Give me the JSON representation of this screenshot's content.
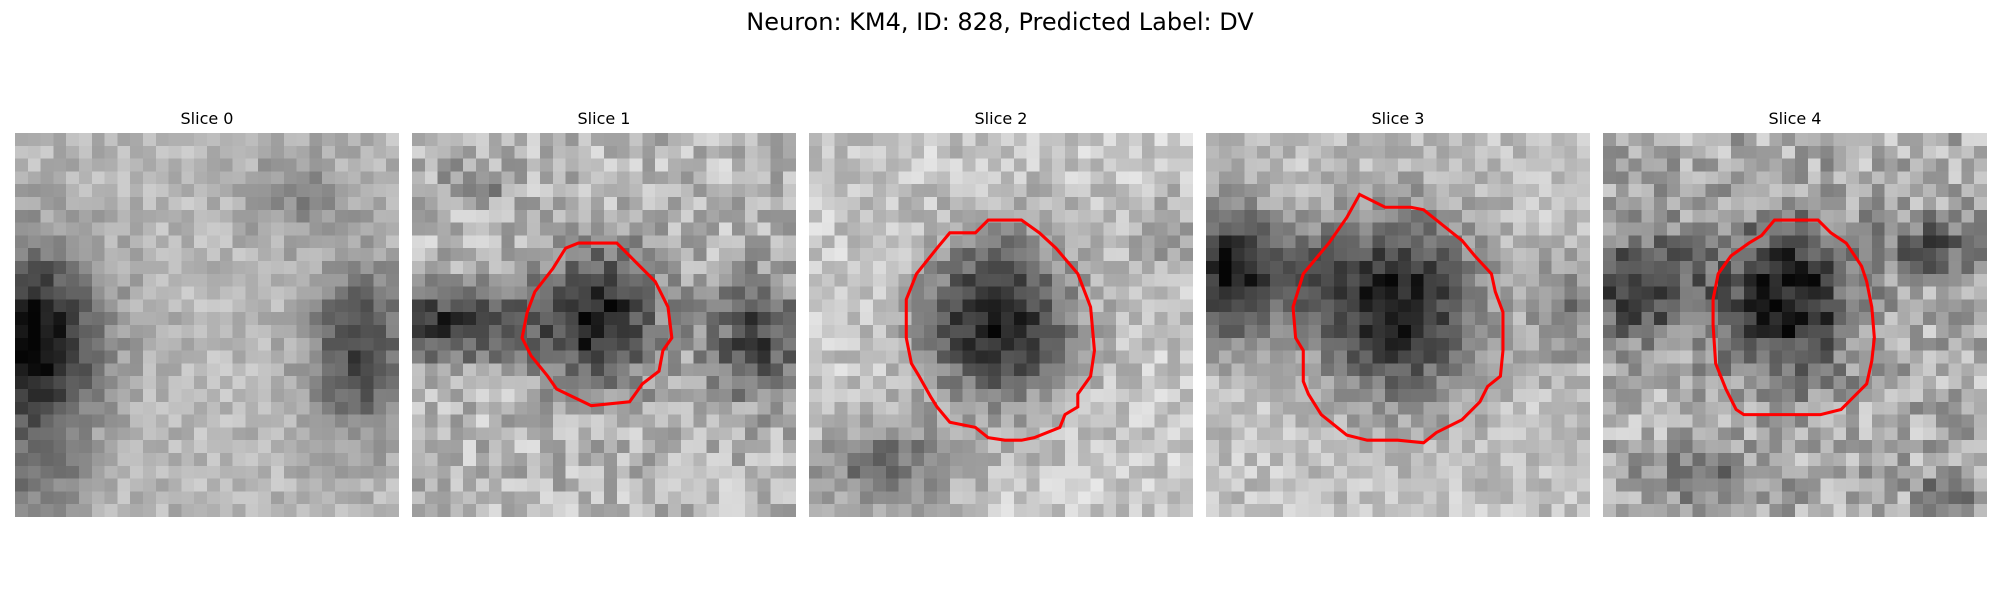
{
  "figure": {
    "title": "Neuron: KM4, ID: 828, Predicted Label: DV"
  },
  "slices": [
    {
      "label": "Slice 0",
      "contour": false
    },
    {
      "label": "Slice 1",
      "contour": true
    },
    {
      "label": "Slice 2",
      "contour": true
    },
    {
      "label": "Slice 3",
      "contour": true
    },
    {
      "label": "Slice 4",
      "contour": true
    }
  ],
  "colors": {
    "contour": "#ff0000",
    "background": "#ffffff"
  }
}
